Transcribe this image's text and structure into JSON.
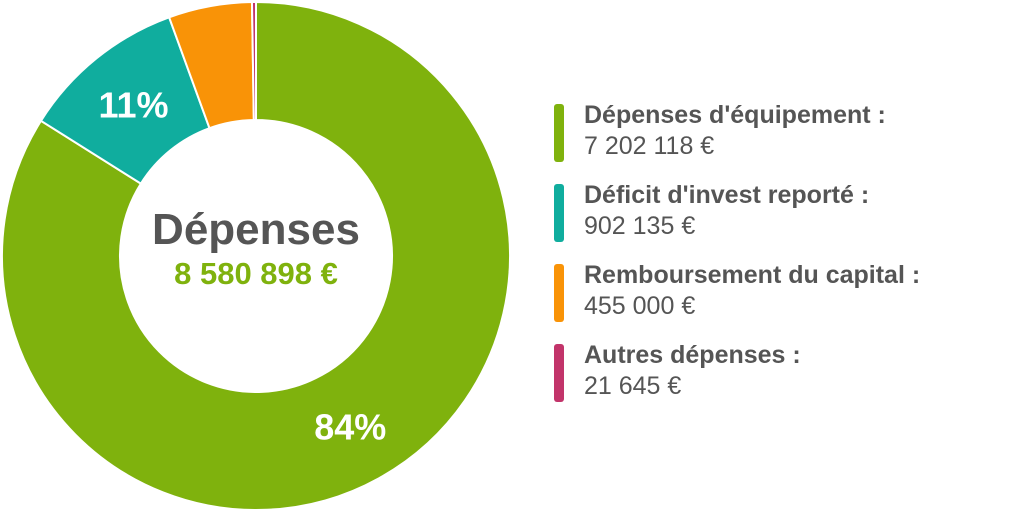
{
  "chart_data": {
    "type": "pie",
    "variant": "donut",
    "title": "Dépenses",
    "total": "8 580 898 €",
    "categories": [
      "Dépenses d'équipement :",
      "Déficit d'invest reporté :",
      "Remboursement du capital :",
      "Autres dépenses :"
    ],
    "values": [
      7202118,
      902135,
      455000,
      21645
    ],
    "value_labels": [
      "7 202 118 €",
      "902 135 €",
      "455 000 €",
      "21 645 €"
    ],
    "percent_labels": [
      "84%",
      "11%",
      "",
      ""
    ],
    "colors": [
      "#7fb20d",
      "#10ad9e",
      "#f99307",
      "#c2346a"
    ],
    "legend": "right"
  },
  "colors": {
    "text": "#555555",
    "total": "#7fb20d",
    "background": "#ffffff"
  }
}
